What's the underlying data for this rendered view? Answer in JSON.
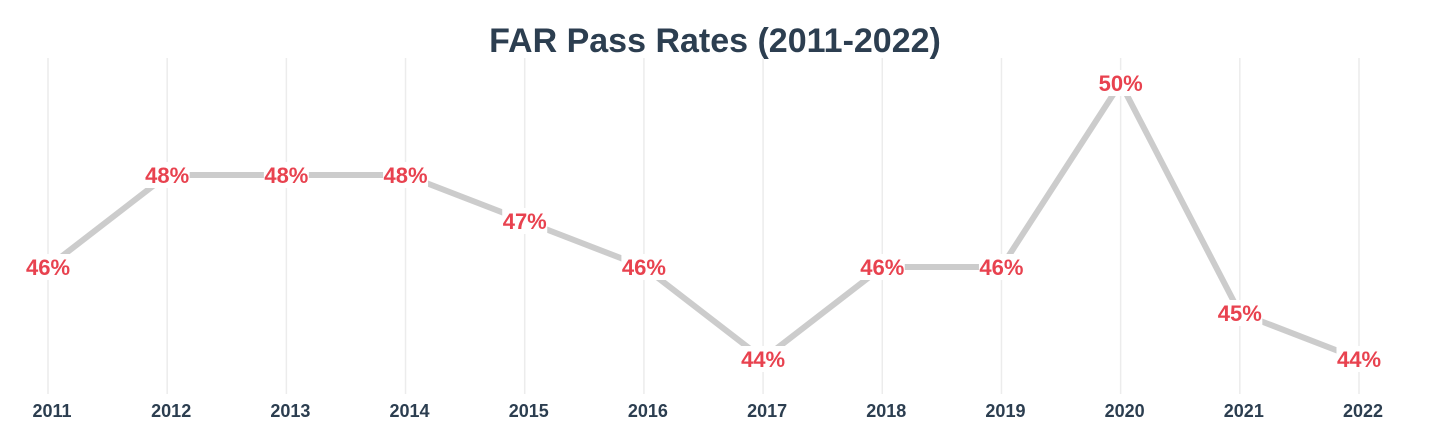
{
  "chart_data": {
    "type": "line",
    "title": "FAR Pass Rates (2011-2022)",
    "xlabel": "",
    "ylabel": "",
    "categories": [
      "2011",
      "2012",
      "2013",
      "2014",
      "2015",
      "2016",
      "2017",
      "2018",
      "2019",
      "2020",
      "2021",
      "2022"
    ],
    "series": [
      {
        "values": [
          46,
          48,
          48,
          48,
          47,
          46,
          44,
          46,
          46,
          50,
          45,
          44
        ],
        "data_labels": [
          "46%",
          "48%",
          "48%",
          "48%",
          "47%",
          "46%",
          "44%",
          "46%",
          "46%",
          "50%",
          "45%",
          "44%"
        ]
      }
    ],
    "ylim": [
      43.2,
      50.6
    ],
    "grid": "vertical",
    "legend": "none",
    "colors": {
      "line": "#cccccc",
      "data_label": "#e8424f",
      "text": "#2c3e50",
      "grid": "#ececec"
    }
  }
}
